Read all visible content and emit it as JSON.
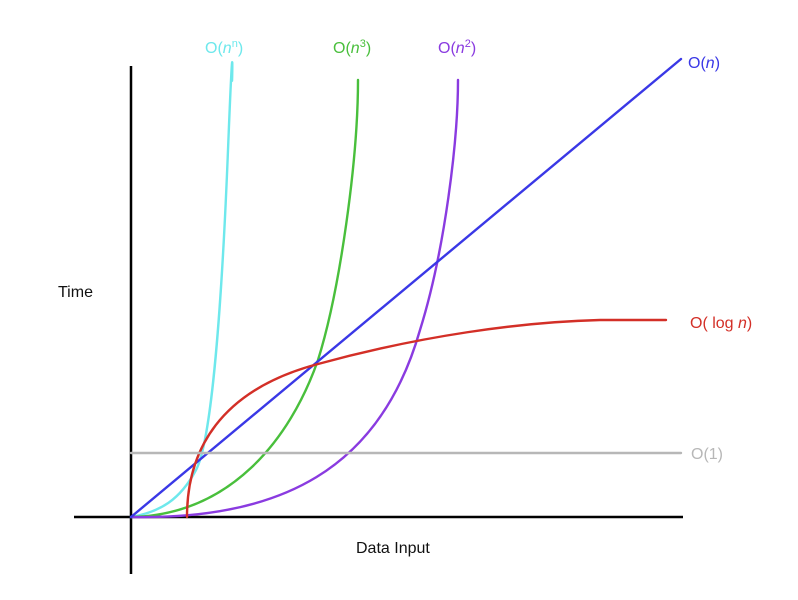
{
  "chart_data": {
    "type": "line",
    "title": "",
    "xlabel": "Data Input",
    "ylabel": "Time",
    "grid": false,
    "legend": "none",
    "series": [
      {
        "label_base": "O(",
        "label_var": "n",
        "label_sup": "n",
        "label_tail": ")",
        "curve": "exponential",
        "color": "#6ee8ec"
      },
      {
        "label_base": "O(",
        "label_var": "n",
        "label_sup": "3",
        "label_tail": ")",
        "curve": "cubic",
        "color": "#49bf3c"
      },
      {
        "label_base": "O(",
        "label_var": "n",
        "label_sup": "2",
        "label_tail": ")",
        "curve": "quadratic",
        "color": "#8a3be0"
      },
      {
        "label_base": "O(",
        "label_var": "n",
        "label_sup": "",
        "label_tail": ")",
        "curve": "linear",
        "color": "#3a38e6"
      },
      {
        "label_base": "O( log ",
        "label_var": "n",
        "label_sup": "",
        "label_tail": ")",
        "curve": "logarithmic",
        "color": "#d32f27"
      },
      {
        "label_base": "O(1)",
        "label_var": "",
        "label_sup": "",
        "label_tail": "",
        "curve": "constant",
        "color": "#b7b7b7"
      }
    ]
  }
}
